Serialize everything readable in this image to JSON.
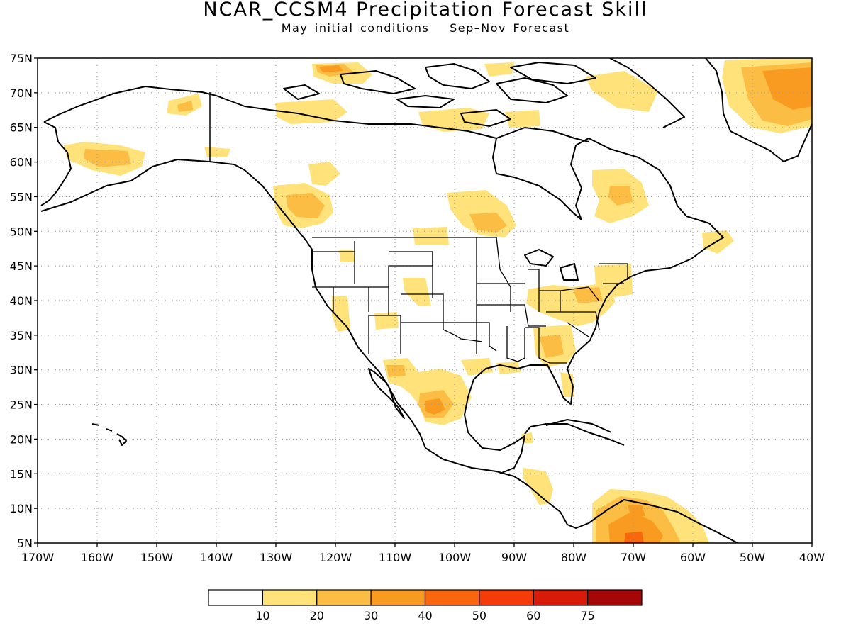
{
  "title": "NCAR_CCSM4 Precipitation Forecast Skill",
  "subtitle": "May initial conditions   Sep–Nov Forecast",
  "map": {
    "lat_labels": [
      "75N",
      "70N",
      "65N",
      "60N",
      "55N",
      "50N",
      "45N",
      "40N",
      "35N",
      "30N",
      "25N",
      "20N",
      "15N",
      "10N",
      "5N"
    ],
    "lon_labels": [
      "170W",
      "160W",
      "150W",
      "140W",
      "130W",
      "120W",
      "110W",
      "100W",
      "90W",
      "80W",
      "70W",
      "60W",
      "50W",
      "40W"
    ],
    "lat_range": [
      5,
      75
    ],
    "lon_range": [
      -170,
      -40
    ],
    "grid": "dotted",
    "skill_colors": [
      "#ffffff",
      "#ffe27a",
      "#fcbd44",
      "#f99b20",
      "#f8670e",
      "#f53c08",
      "#d81a08",
      "#a50606"
    ]
  },
  "legend": {
    "labels": [
      "10",
      "20",
      "30",
      "40",
      "50",
      "60",
      "75"
    ],
    "colors": [
      "#ffffff",
      "#ffe27a",
      "#fcbd44",
      "#f99b20",
      "#f8670e",
      "#f53c08",
      "#d81a08",
      "#a50606"
    ]
  }
}
